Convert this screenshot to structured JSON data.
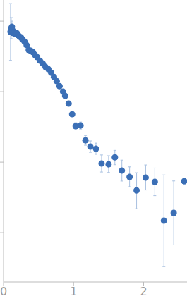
{
  "chart_data": {
    "type": "scatter",
    "log": "y",
    "grid": false,
    "tick_labels": "x",
    "color": "#3b6fb6",
    "marker": "circle",
    "xlim": [
      0,
      2.62
    ],
    "xticks": [
      0,
      1,
      2
    ],
    "ylim": [
      0.0002,
      2
    ],
    "yticks": [
      0.001,
      0.01,
      0.1,
      1
    ],
    "x": [
      0.1,
      0.11,
      0.12,
      0.13,
      0.14,
      0.15,
      0.17,
      0.19,
      0.21,
      0.23,
      0.25,
      0.27,
      0.3,
      0.33,
      0.36,
      0.39,
      0.42,
      0.45,
      0.48,
      0.52,
      0.56,
      0.6,
      0.64,
      0.68,
      0.72,
      0.76,
      0.8,
      0.85,
      0.88,
      0.93,
      0.98,
      1.03,
      1.1,
      1.17,
      1.24,
      1.32,
      1.4,
      1.5,
      1.59,
      1.69,
      1.8,
      1.9,
      2.03,
      2.16,
      2.29,
      2.43,
      2.58
    ],
    "values": [
      0.708,
      0.794,
      0.832,
      0.741,
      0.676,
      0.692,
      0.661,
      0.676,
      0.631,
      0.603,
      0.589,
      0.55,
      0.513,
      0.457,
      0.389,
      0.38,
      0.363,
      0.331,
      0.309,
      0.275,
      0.251,
      0.224,
      0.209,
      0.186,
      0.162,
      0.141,
      0.12,
      0.1,
      0.0871,
      0.0676,
      0.0479,
      0.0324,
      0.0331,
      0.0204,
      0.0166,
      0.0155,
      0.00955,
      0.00933,
      0.0117,
      0.00759,
      0.00617,
      0.00398,
      0.00603,
      0.00525,
      0.00148,
      0.00191,
      0.00537
    ],
    "error": [
      [
        0.43,
        1.07
      ],
      [
        0.23,
        0.33
      ],
      [
        0.14,
        0.17
      ],
      [
        0.05,
        0.05
      ],
      [
        0.04,
        0.04
      ],
      [
        0.04,
        0.04
      ],
      [
        0.03,
        0.03
      ],
      [
        0.03,
        0.03
      ],
      [
        0.03,
        0.03
      ],
      [
        0.02,
        0.02
      ],
      [
        0.02,
        0.02
      ],
      [
        0.02,
        0.02
      ],
      [
        0.02,
        0.02
      ],
      [
        0.02,
        0.02
      ],
      [
        0.015,
        0.015
      ],
      [
        0.015,
        0.015
      ],
      [
        0.015,
        0.015
      ],
      [
        0.013,
        0.013
      ],
      [
        0.012,
        0.012
      ],
      [
        0.011,
        0.011
      ],
      [
        0.01,
        0.01
      ],
      [
        0.009,
        0.009
      ],
      [
        0.008,
        0.008
      ],
      [
        0.008,
        0.008
      ],
      [
        0.007,
        0.007
      ],
      [
        0.006,
        0.006
      ],
      [
        0.005,
        0.005
      ],
      [
        0.005,
        0.005
      ],
      [
        0.004,
        0.004
      ],
      [
        0.004,
        0.004
      ],
      [
        0.003,
        0.003
      ],
      [
        0.0036,
        0.0039
      ],
      [
        0.0036,
        0.004
      ],
      [
        0.003,
        0.0035
      ],
      [
        0.0028,
        0.0034
      ],
      [
        0.0026,
        0.0031
      ],
      [
        0.0023,
        0.0031
      ],
      [
        0.0022,
        0.003
      ],
      [
        0.0025,
        0.003
      ],
      [
        0.0022,
        0.0031
      ],
      [
        0.0017,
        0.0024
      ],
      [
        0.0018,
        0.0031
      ],
      [
        0.002,
        0.0031
      ],
      [
        0.0019,
        0.003
      ],
      [
        0.00115,
        0.0051
      ],
      [
        0.00124,
        0.0035
      ],
      [
        0.0005,
        0.0005
      ]
    ]
  }
}
